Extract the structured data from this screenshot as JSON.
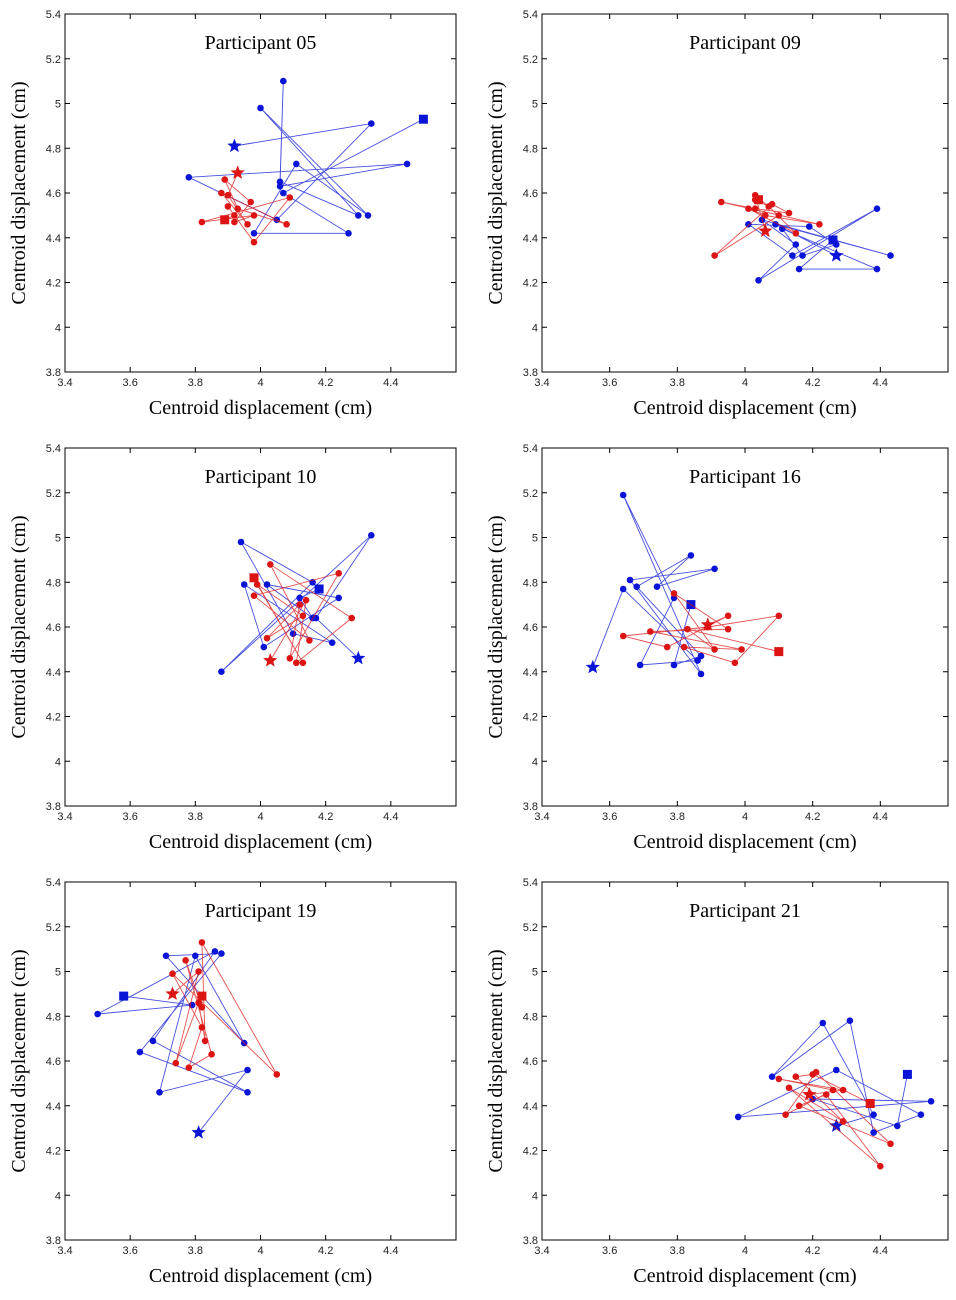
{
  "figure": {
    "xlabel": "Centroid displacement (cm)",
    "ylabel": "Centroid displacement (cm)",
    "xlim": [
      3.4,
      4.6
    ],
    "ylim": [
      3.8,
      5.4
    ],
    "xticks": [
      "3.4",
      "3.6",
      "3.8",
      "4",
      "4.2",
      "4.4"
    ],
    "yticks": [
      "3.8",
      "4",
      "4.2",
      "4.4",
      "4.6",
      "4.8",
      "5",
      "5.2",
      "5.4"
    ],
    "colors": {
      "blue": "#0a14d6",
      "red": "#dc1414"
    }
  },
  "chart_data": [
    {
      "type": "scatter",
      "title": "Participant 05",
      "series": [
        {
          "name": "blue",
          "start": [
            3.92,
            4.81
          ],
          "end": [
            4.5,
            4.93
          ],
          "points": [
            [
              3.92,
              4.81
            ],
            [
              4.34,
              4.91
            ],
            [
              4.05,
              4.48
            ],
            [
              3.78,
              4.67
            ],
            [
              4.45,
              4.73
            ],
            [
              4.06,
              4.63
            ],
            [
              4.07,
              5.1
            ],
            [
              4.06,
              4.65
            ],
            [
              4.3,
              4.5
            ],
            [
              4.0,
              4.98
            ],
            [
              4.33,
              4.5
            ],
            [
              4.11,
              4.73
            ],
            [
              3.98,
              4.42
            ],
            [
              4.27,
              4.42
            ],
            [
              4.07,
              4.6
            ],
            [
              4.5,
              4.93
            ]
          ]
        },
        {
          "name": "red",
          "start": [
            3.93,
            4.69
          ],
          "end": [
            3.89,
            4.48
          ],
          "points": [
            [
              3.93,
              4.69
            ],
            [
              3.9,
              4.59
            ],
            [
              3.96,
              4.46
            ],
            [
              3.88,
              4.6
            ],
            [
              4.08,
              4.46
            ],
            [
              3.93,
              4.53
            ],
            [
              3.89,
              4.66
            ],
            [
              3.97,
              4.56
            ],
            [
              3.92,
              4.47
            ],
            [
              3.98,
              4.5
            ],
            [
              3.82,
              4.47
            ],
            [
              4.09,
              4.58
            ],
            [
              3.98,
              4.38
            ],
            [
              3.9,
              4.54
            ],
            [
              3.92,
              4.5
            ],
            [
              3.89,
              4.48
            ]
          ]
        }
      ]
    },
    {
      "type": "scatter",
      "title": "Participant 09",
      "series": [
        {
          "name": "blue",
          "start": [
            4.27,
            4.32
          ],
          "end": [
            4.26,
            4.39
          ],
          "points": [
            [
              4.27,
              4.32
            ],
            [
              4.09,
              4.46
            ],
            [
              4.43,
              4.32
            ],
            [
              4.05,
              4.48
            ],
            [
              4.15,
              4.37
            ],
            [
              4.04,
              4.21
            ],
            [
              4.39,
              4.53
            ],
            [
              4.14,
              4.32
            ],
            [
              4.01,
              4.46
            ],
            [
              4.19,
              4.45
            ],
            [
              4.27,
              4.37
            ],
            [
              4.17,
              4.32
            ],
            [
              4.11,
              4.44
            ],
            [
              4.39,
              4.26
            ],
            [
              4.16,
              4.26
            ],
            [
              4.26,
              4.39
            ]
          ]
        },
        {
          "name": "red",
          "start": [
            4.06,
            4.43
          ],
          "end": [
            4.04,
            4.57
          ],
          "points": [
            [
              4.06,
              4.43
            ],
            [
              4.03,
              4.59
            ],
            [
              4.1,
              4.5
            ],
            [
              3.91,
              4.32
            ],
            [
              4.08,
              4.55
            ],
            [
              4.13,
              4.51
            ],
            [
              4.03,
              4.53
            ],
            [
              3.93,
              4.56
            ],
            [
              4.22,
              4.46
            ],
            [
              4.06,
              4.5
            ],
            [
              4.01,
              4.53
            ],
            [
              4.15,
              4.42
            ],
            [
              4.07,
              4.54
            ],
            [
              4.03,
              4.57
            ],
            [
              4.04,
              4.57
            ]
          ]
        }
      ]
    },
    {
      "type": "scatter",
      "title": "Participant 10",
      "series": [
        {
          "name": "blue",
          "start": [
            4.3,
            4.46
          ],
          "end": [
            4.18,
            4.77
          ],
          "points": [
            [
              4.3,
              4.46
            ],
            [
              4.17,
              4.64
            ],
            [
              4.34,
              5.01
            ],
            [
              3.88,
              4.4
            ],
            [
              4.16,
              4.8
            ],
            [
              3.94,
              4.98
            ],
            [
              4.1,
              4.57
            ],
            [
              4.22,
              4.53
            ],
            [
              3.95,
              4.79
            ],
            [
              4.01,
              4.51
            ],
            [
              4.24,
              4.73
            ],
            [
              4.02,
              4.79
            ],
            [
              4.16,
              4.64
            ],
            [
              4.12,
              4.73
            ],
            [
              4.18,
              4.77
            ]
          ]
        },
        {
          "name": "red",
          "start": [
            4.03,
            4.45
          ],
          "end": [
            3.98,
            4.82
          ],
          "points": [
            [
              4.03,
              4.45
            ],
            [
              4.14,
              4.72
            ],
            [
              4.11,
              4.44
            ],
            [
              4.28,
              4.64
            ],
            [
              4.03,
              4.88
            ],
            [
              4.15,
              4.54
            ],
            [
              3.98,
              4.74
            ],
            [
              4.24,
              4.84
            ],
            [
              4.09,
              4.46
            ],
            [
              4.12,
              4.7
            ],
            [
              4.02,
              4.55
            ],
            [
              4.13,
              4.65
            ],
            [
              3.99,
              4.79
            ],
            [
              4.13,
              4.44
            ],
            [
              3.98,
              4.82
            ]
          ]
        }
      ]
    },
    {
      "type": "scatter",
      "title": "Participant 16",
      "series": [
        {
          "name": "blue",
          "start": [
            3.55,
            4.42
          ],
          "end": [
            3.84,
            4.7
          ],
          "points": [
            [
              3.55,
              4.42
            ],
            [
              3.64,
              4.77
            ],
            [
              3.86,
              4.45
            ],
            [
              3.69,
              4.43
            ],
            [
              3.79,
              4.73
            ],
            [
              3.64,
              5.19
            ],
            [
              3.87,
              4.39
            ],
            [
              3.66,
              4.81
            ],
            [
              3.91,
              4.86
            ],
            [
              3.74,
              4.78
            ],
            [
              3.84,
              4.92
            ],
            [
              3.68,
              4.78
            ],
            [
              3.87,
              4.47
            ],
            [
              3.79,
              4.43
            ],
            [
              3.84,
              4.7
            ]
          ]
        },
        {
          "name": "red",
          "start": [
            3.89,
            4.61
          ],
          "end": [
            4.1,
            4.49
          ],
          "points": [
            [
              3.89,
              4.61
            ],
            [
              3.95,
              4.65
            ],
            [
              3.77,
              4.51
            ],
            [
              3.64,
              4.56
            ],
            [
              3.89,
              4.6
            ],
            [
              4.1,
              4.65
            ],
            [
              3.97,
              4.44
            ],
            [
              3.82,
              4.51
            ],
            [
              3.99,
              4.5
            ],
            [
              3.72,
              4.58
            ],
            [
              3.95,
              4.59
            ],
            [
              3.79,
              4.75
            ],
            [
              3.91,
              4.5
            ],
            [
              3.83,
              4.59
            ],
            [
              4.1,
              4.49
            ]
          ]
        }
      ]
    },
    {
      "type": "scatter",
      "title": "Participant 19",
      "series": [
        {
          "name": "blue",
          "start": [
            3.81,
            4.28
          ],
          "end": [
            3.58,
            4.89
          ],
          "points": [
            [
              3.81,
              4.28
            ],
            [
              3.96,
              4.56
            ],
            [
              3.69,
              4.46
            ],
            [
              3.8,
              5.07
            ],
            [
              3.95,
              4.68
            ],
            [
              3.71,
              5.07
            ],
            [
              3.88,
              5.08
            ],
            [
              3.63,
              4.64
            ],
            [
              3.96,
              4.46
            ],
            [
              3.67,
              4.69
            ],
            [
              3.86,
              5.09
            ],
            [
              3.5,
              4.81
            ],
            [
              3.79,
              4.85
            ],
            [
              3.58,
              4.89
            ]
          ]
        },
        {
          "name": "red",
          "start": [
            3.73,
            4.9
          ],
          "end": [
            3.82,
            4.89
          ],
          "points": [
            [
              3.73,
              4.9
            ],
            [
              3.81,
              5.0
            ],
            [
              3.74,
              4.59
            ],
            [
              3.81,
              4.86
            ],
            [
              3.83,
              4.69
            ],
            [
              3.82,
              5.13
            ],
            [
              4.05,
              4.54
            ],
            [
              3.73,
              4.99
            ],
            [
              3.82,
              4.75
            ],
            [
              3.78,
              4.57
            ],
            [
              3.85,
              4.63
            ],
            [
              3.77,
              5.05
            ],
            [
              3.82,
              4.84
            ],
            [
              3.82,
              4.89
            ]
          ]
        }
      ]
    },
    {
      "type": "scatter",
      "title": "Participant 21",
      "series": [
        {
          "name": "blue",
          "start": [
            4.27,
            4.31
          ],
          "end": [
            4.48,
            4.54
          ],
          "points": [
            [
              4.27,
              4.31
            ],
            [
              4.38,
              4.36
            ],
            [
              4.23,
              4.77
            ],
            [
              4.08,
              4.53
            ],
            [
              4.31,
              4.78
            ],
            [
              4.38,
              4.28
            ],
            [
              4.52,
              4.36
            ],
            [
              4.27,
              4.56
            ],
            [
              3.98,
              4.35
            ],
            [
              4.55,
              4.42
            ],
            [
              4.2,
              4.43
            ],
            [
              4.45,
              4.31
            ],
            [
              4.48,
              4.54
            ]
          ]
        },
        {
          "name": "red",
          "start": [
            4.19,
            4.45
          ],
          "end": [
            4.37,
            4.41
          ],
          "points": [
            [
              4.19,
              4.45
            ],
            [
              4.29,
              4.47
            ],
            [
              4.1,
              4.52
            ],
            [
              4.26,
              4.47
            ],
            [
              4.12,
              4.36
            ],
            [
              4.21,
              4.55
            ],
            [
              4.43,
              4.23
            ],
            [
              4.16,
              4.4
            ],
            [
              4.24,
              4.45
            ],
            [
              4.4,
              4.13
            ],
            [
              4.13,
              4.48
            ],
            [
              4.29,
              4.33
            ],
            [
              4.15,
              4.53
            ],
            [
              4.2,
              4.54
            ],
            [
              4.37,
              4.41
            ]
          ]
        }
      ]
    }
  ]
}
